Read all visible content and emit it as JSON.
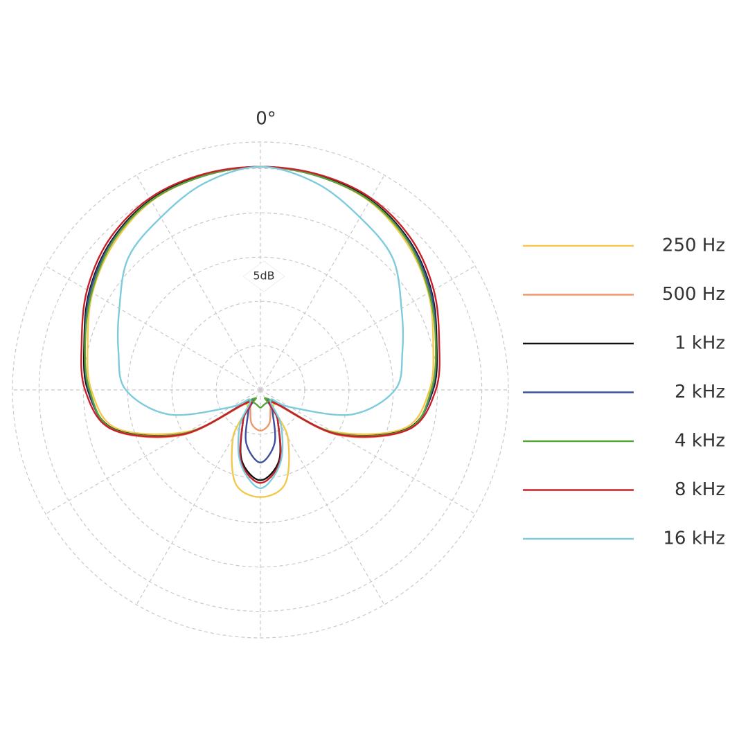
{
  "chart_data": {
    "type": "polar",
    "theta": [
      0,
      15,
      30,
      45,
      60,
      75,
      90,
      105,
      120,
      135,
      150,
      165,
      180,
      195,
      210,
      225,
      240,
      255,
      270,
      285,
      300,
      315,
      330,
      345
    ],
    "rlim": [
      -25,
      3
    ],
    "rticks": [
      -20,
      -15,
      -10,
      -5,
      0
    ],
    "thetaticks": [
      {
        "value": 0,
        "label": "0°"
      },
      30,
      60,
      90,
      120,
      150,
      180,
      210,
      240,
      270,
      300,
      330
    ],
    "annotation": "5dB",
    "grid": true,
    "legend": "right",
    "series": [
      {
        "name": "250 Hz",
        "color": "#f2c94c",
        "values": [
          0.2,
          0,
          -0.4,
          -1.6,
          -3.1,
          -4.8,
          -5.9,
          -8.2,
          -15.6,
          -22.7,
          -18.8,
          -14.1,
          -12.9,
          -14.1,
          -18.8,
          -22.7,
          -15.6,
          -8.2,
          -5.9,
          -4.8,
          -3.1,
          -1.6,
          -0.4,
          0
        ]
      },
      {
        "name": "500 Hz",
        "color": "#f0956a",
        "values": [
          0.2,
          0,
          -0.3,
          -1.3,
          -2.9,
          -4.5,
          -5.7,
          -7.7,
          -14.8,
          -23.0,
          -22.7,
          -21.1,
          -20.4,
          -21.1,
          -22.7,
          -23.0,
          -14.8,
          -7.7,
          -5.7,
          -4.5,
          -2.9,
          -1.3,
          -0.3,
          0
        ]
      },
      {
        "name": "1 kHz",
        "color": "#111111",
        "values": [
          0.2,
          0.1,
          -0.2,
          -1.2,
          -2.7,
          -4.4,
          -5.5,
          -7.9,
          -15.2,
          -23.0,
          -21.1,
          -16.8,
          -14.8,
          -16.8,
          -21.1,
          -23.0,
          -15.2,
          -7.9,
          -5.5,
          -4.4,
          -2.7,
          -1.2,
          -0.2,
          0.1
        ]
      },
      {
        "name": "2 kHz",
        "color": "#3a4f9c",
        "values": [
          0.2,
          0,
          -0.3,
          -1.3,
          -2.8,
          -4.5,
          -5.6,
          -7.8,
          -15.2,
          -23.3,
          -22.3,
          -18.8,
          -16.8,
          -18.8,
          -22.3,
          -23.3,
          -15.2,
          -7.8,
          -5.6,
          -4.5,
          -2.8,
          -1.3,
          -0.3,
          0
        ]
      },
      {
        "name": "4 kHz",
        "color": "#5aa53a",
        "values": [
          0.2,
          0,
          -0.3,
          -1.4,
          -3.0,
          -4.5,
          -5.7,
          -7.8,
          -15.2,
          -23.4,
          -23.4,
          -23.3,
          -23.0,
          -23.3,
          -23.4,
          -23.4,
          -15.2,
          -7.8,
          -5.7,
          -4.5,
          -3.0,
          -1.4,
          -0.3,
          0
        ]
      },
      {
        "name": "8 kHz",
        "color": "#c8202a",
        "values": [
          0.2,
          0.2,
          0,
          -0.9,
          -2.4,
          -4.1,
          -5.2,
          -7.7,
          -15.0,
          -23.0,
          -21.1,
          -16.6,
          -14.5,
          -16.6,
          -21.1,
          -23.0,
          -15.0,
          -7.7,
          -5.2,
          -4.1,
          -2.4,
          -0.9,
          0,
          0.2
        ]
      },
      {
        "name": "16 kHz",
        "color": "#7dcbdc",
        "values": [
          0.2,
          -0.8,
          -2.5,
          -3.9,
          -6.6,
          -8.4,
          -9.8,
          -14.3,
          -21.1,
          -23.4,
          -20.3,
          -16.4,
          -13.9,
          -16.4,
          -20.3,
          -23.4,
          -21.1,
          -14.3,
          -9.8,
          -8.4,
          -6.6,
          -3.9,
          -2.5,
          -0.8
        ]
      }
    ]
  }
}
